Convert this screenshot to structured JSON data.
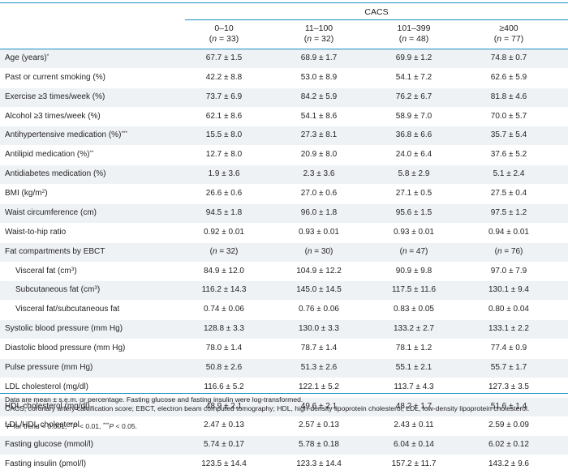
{
  "header": {
    "group": "CACS",
    "columns": [
      {
        "range": "0–10",
        "n": "33"
      },
      {
        "range": "11–100",
        "n": "32"
      },
      {
        "range": "101–399",
        "n": "48"
      },
      {
        "range": "≥400",
        "n": "77"
      }
    ]
  },
  "rows": [
    {
      "label": "Age (years)",
      "sup": "*",
      "values": [
        "67.7 ± 1.5",
        "68.9 ± 1.7",
        "69.9 ± 1.2",
        "74.8 ± 0.7"
      ]
    },
    {
      "label": "Past or current smoking (%)",
      "values": [
        "42.2 ± 8.8",
        "53.0 ± 8.9",
        "54.1 ± 7.2",
        "62.6 ± 5.9"
      ]
    },
    {
      "label": "Exercise ≥3 times/week (%)",
      "values": [
        "73.7 ± 6.9",
        "84.2 ± 5.9",
        "76.2 ± 6.7",
        "81.8 ± 4.6"
      ]
    },
    {
      "label": "Alcohol ≥3 times/week (%)",
      "values": [
        "62.1 ± 8.6",
        "54.1 ± 8.6",
        "58.9 ± 7.0",
        "70.0 ± 5.7"
      ]
    },
    {
      "label": "Antihypertensive medication (%)",
      "sup": "***",
      "values": [
        "15.5 ± 8.0",
        "27.3 ± 8.1",
        "36.8 ± 6.6",
        "35.7 ± 5.4"
      ]
    },
    {
      "label": "Antilipid medication (%)",
      "sup": "**",
      "values": [
        "12.7 ± 8.0",
        "20.9 ± 8.0",
        "24.0 ± 6.4",
        "37.6 ± 5.2"
      ]
    },
    {
      "label": "Antidiabetes medication (%)",
      "values": [
        "1.9 ± 3.6",
        "2.3 ± 3.6",
        "5.8 ± 2.9",
        "5.1 ± 2.4"
      ]
    },
    {
      "label": "BMI (kg/m",
      "sup": "2",
      "suffix": ")",
      "values": [
        "26.6 ± 0.6",
        "27.0 ± 0.6",
        "27.1 ± 0.5",
        "27.5 ± 0.4"
      ]
    },
    {
      "label": "Waist circumference (cm)",
      "values": [
        "94.5 ± 1.8",
        "96.0 ± 1.8",
        "95.6 ± 1.5",
        "97.5 ± 1.2"
      ]
    },
    {
      "label": "Waist-to-hip ratio",
      "values": [
        "0.92 ± 0.01",
        "0.93 ± 0.01",
        "0.93 ± 0.01",
        "0.94 ± 0.01"
      ]
    },
    {
      "label": "Fat compartments by EBCT",
      "ns": [
        "32",
        "30",
        "47",
        "76"
      ]
    },
    {
      "label": "Visceral fat (cm",
      "sup": "3",
      "suffix": ")",
      "indent": true,
      "values": [
        "84.9 ± 12.0",
        "104.9 ± 12.2",
        "90.9 ± 9.8",
        "97.0 ± 7.9"
      ]
    },
    {
      "label": "Subcutaneous fat (cm",
      "sup": "3",
      "suffix": ")",
      "indent": true,
      "values": [
        "116.2 ± 14.3",
        "145.0 ± 14.5",
        "117.5 ± 11.6",
        "130.1 ± 9.4"
      ]
    },
    {
      "label": "Visceral fat/subcutaneous fat",
      "indent": true,
      "values": [
        "0.74 ± 0.06",
        "0.76 ± 0.06",
        "0.83 ± 0.05",
        "0.80 ± 0.04"
      ]
    },
    {
      "label": "Systolic blood pressure (mm Hg)",
      "values": [
        "128.8 ± 3.3",
        "130.0 ± 3.3",
        "133.2 ± 2.7",
        "133.1 ± 2.2"
      ]
    },
    {
      "label": "Diastolic blood pressure (mm Hg)",
      "values": [
        "78.0 ± 1.4",
        "78.7 ± 1.4",
        "78.1 ± 1.2",
        "77.4 ± 0.9"
      ]
    },
    {
      "label": "Pulse pressure (mm Hg)",
      "values": [
        "50.8 ± 2.6",
        "51.3 ± 2.6",
        "55.1 ± 2.1",
        "55.7 ± 1.7"
      ]
    },
    {
      "label": "LDL cholesterol (mg/dl)",
      "values": [
        "116.6 ± 5.2",
        "122.1 ± 5.2",
        "113.7 ± 4.3",
        "127.3 ± 3.5"
      ]
    },
    {
      "label": "HDL cholesterol (mg/dl)",
      "values": [
        "48.9 ± 2.1",
        "49.6 ± 2.1",
        "48.2 ± 1.7",
        "51.6 ± 1.4"
      ]
    },
    {
      "label": "LDL/HDL cholesterol",
      "values": [
        "2.47 ± 0.13",
        "2.57 ± 0.13",
        "2.43 ± 0.11",
        "2.59 ± 0.09"
      ]
    },
    {
      "label": "Fasting glucose (mmol/l)",
      "values": [
        "5.74 ± 0.17",
        "5.78 ± 0.18",
        "6.04 ± 0.14",
        "6.02 ± 0.12"
      ]
    },
    {
      "label": "Fasting insulin (pmol/l)",
      "values": [
        "123.5 ± 14.4",
        "123.3 ± 14.4",
        "157.2 ± 11.7",
        "143.2 ± 9.6"
      ]
    }
  ],
  "footnotes": {
    "line1": "Data are mean ± s.e.m. or percentage. Fasting glucose and fasting insulin were log-transformed.",
    "line2": "CACS, coronary artery calcification score; EBCT, electron beam computed tomography; HDL, high-density lipoprotein cholesterol; LDL, low-density lipoprotein cholesterol.",
    "line3": [
      {
        "mark": "*",
        "p": "P",
        "text": " for trend < 0.001, "
      },
      {
        "mark": "**",
        "p": "P",
        "text": " < 0.01, "
      },
      {
        "mark": "***",
        "p": "P",
        "text": " < 0.05."
      }
    ]
  }
}
